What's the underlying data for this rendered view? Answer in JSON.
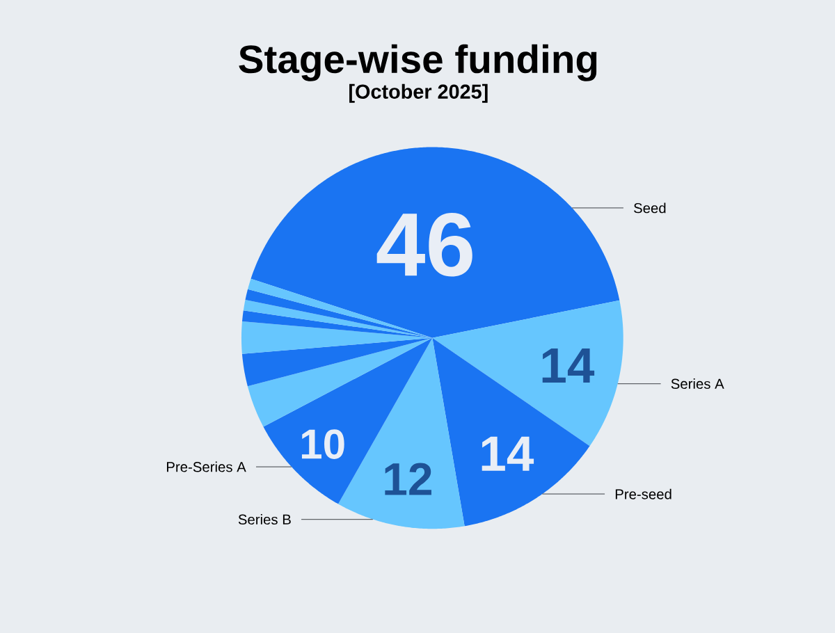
{
  "chart_data": {
    "type": "pie",
    "title": "Stage-wise funding",
    "subtitle": "[October 2025]",
    "categories": [
      "Seed",
      "Series A",
      "Pre-seed",
      "Series B",
      "Pre-Series A",
      null,
      null,
      null,
      null,
      null,
      null,
      null
    ],
    "values": [
      46,
      14,
      14,
      12,
      10,
      4,
      3,
      3,
      1,
      1,
      1,
      1
    ],
    "colors": [
      "#1a74f2",
      "#66c6fe",
      "#1a74f2",
      "#66c6fe",
      "#1a74f2",
      "#66c6fe",
      "#1a74f2",
      "#66c6fe",
      "#1a74f2",
      "#66c6fe",
      "#1a74f2",
      "#66c6fe"
    ],
    "value_labels": [
      "46",
      "14",
      "14",
      "12",
      "10",
      null,
      null,
      null,
      null,
      null,
      null,
      null
    ]
  }
}
